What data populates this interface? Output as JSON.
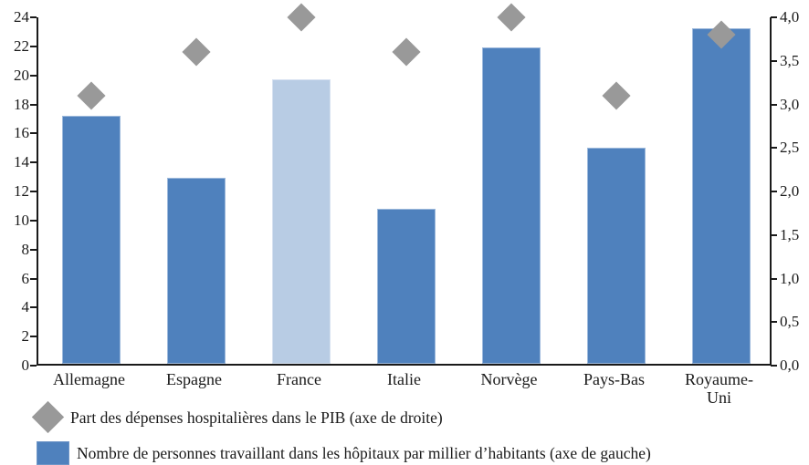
{
  "chart_data": {
    "type": "combo",
    "categories": [
      "Allemagne",
      "Espagne",
      "France",
      "Italie",
      "Norvège",
      "Pays-Bas",
      "Royaume-\nUni"
    ],
    "series": [
      {
        "name": "Nombre de personnes travaillant dans les hôpitaux par millier d’habitants (axe de gauche)",
        "type": "bar",
        "axis": "left",
        "values": [
          17.1,
          12.8,
          19.6,
          10.7,
          21.8,
          14.9,
          23.1
        ],
        "color": "#4F81BD",
        "border_color": "#9DB9DC",
        "highlight_index": 2,
        "highlight_color": "#B8CCE4",
        "highlight_border_color": "#D6E1F0"
      },
      {
        "name": "Part des dépenses hospitalières dans le PIB (axe de droite)",
        "type": "scatter",
        "marker": "diamond",
        "axis": "right",
        "values": [
          3.1,
          3.6,
          4.0,
          3.6,
          4.0,
          3.1,
          3.8
        ],
        "color": "#999999"
      }
    ],
    "left_axis": {
      "min": 0,
      "max": 24,
      "step": 2,
      "ticks": [
        "0",
        "2",
        "4",
        "6",
        "8",
        "10",
        "12",
        "14",
        "16",
        "18",
        "20",
        "22",
        "24"
      ]
    },
    "right_axis": {
      "min": 0,
      "max": 4,
      "step": 0.5,
      "ticks": [
        "0,0",
        "0,5",
        "1,0",
        "1,5",
        "2,0",
        "2,5",
        "3,0",
        "3,5",
        "4,0"
      ]
    },
    "grid": false,
    "legend_position": "bottom-left",
    "title": "",
    "xlabel": "",
    "ylabel": ""
  },
  "legend": {
    "items": [
      {
        "marker": "diamond",
        "label": "Part des dépenses hospitalières dans le PIB (axe de droite)"
      },
      {
        "marker": "square",
        "label": "Nombre de personnes travaillant dans les hôpitaux par millier d’habitants (axe de gauche)"
      }
    ]
  },
  "colors": {
    "bar": "#4F81BD",
    "bar_highlight": "#B8CCE4",
    "diamond": "#999999",
    "axis": "#1a1a1a",
    "background": "#ffffff"
  }
}
